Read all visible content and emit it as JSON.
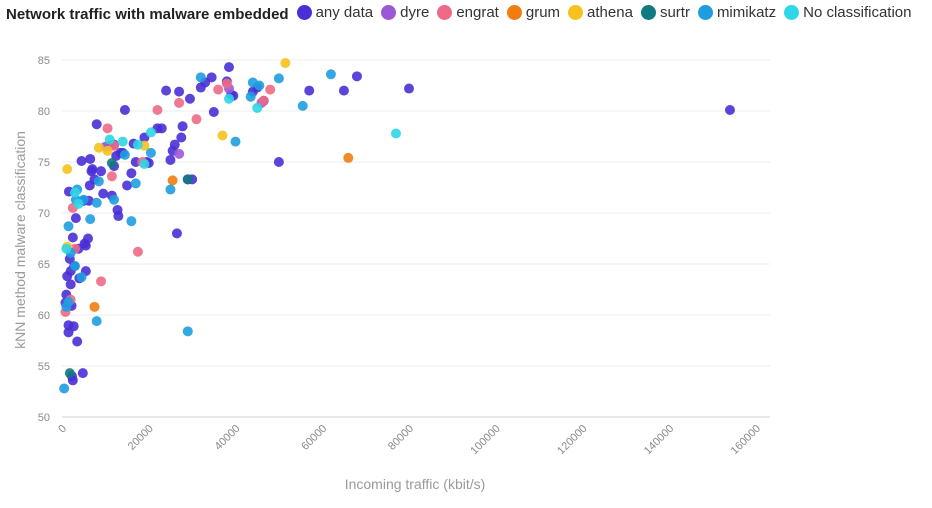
{
  "legend": {
    "title": "Network traffic with malware embedded",
    "items": [
      {
        "label": "any data",
        "color": "#4a2fd6"
      },
      {
        "label": "dyre",
        "color": "#9b59d6"
      },
      {
        "label": "engrat",
        "color": "#ee6a86"
      },
      {
        "label": "grum",
        "color": "#f07d0f"
      },
      {
        "label": "athena",
        "color": "#f7c21d"
      },
      {
        "label": "surtr",
        "color": "#117a80"
      },
      {
        "label": "mimikatz",
        "color": "#1f9de0"
      },
      {
        "label": "No classification",
        "color": "#2fd6e6"
      }
    ]
  },
  "chart_data": {
    "type": "scatter",
    "title": "Network traffic with malware embedded",
    "xlabel": "Incoming traffic (kbit/s)",
    "ylabel": "kNN method malware classification",
    "xlim": [
      0,
      160000
    ],
    "ylim": [
      50,
      85
    ],
    "x_ticks": [
      "0",
      "20000",
      "40000",
      "60000",
      "80000",
      "100000",
      "120000",
      "140000",
      "160000"
    ],
    "y_ticks": [
      "50",
      "55",
      "60",
      "65",
      "70",
      "75",
      "80",
      "85"
    ],
    "grid": "horizontal",
    "legend_position": "top",
    "series": [
      {
        "name": "any data",
        "points": [
          [
            800,
            61.2
          ],
          [
            1000,
            62
          ],
          [
            1200,
            63.8
          ],
          [
            1500,
            58.3
          ],
          [
            1500,
            59
          ],
          [
            1600,
            72.1
          ],
          [
            1800,
            65.5
          ],
          [
            2000,
            64.3
          ],
          [
            2000,
            63
          ],
          [
            2200,
            60.9
          ],
          [
            2300,
            54
          ],
          [
            2500,
            53.6
          ],
          [
            2500,
            67.6
          ],
          [
            2700,
            58.9
          ],
          [
            2800,
            64.8
          ],
          [
            3200,
            69.5
          ],
          [
            3500,
            57.4
          ],
          [
            3800,
            66.5
          ],
          [
            4000,
            63.6
          ],
          [
            4500,
            75.1
          ],
          [
            4800,
            54.3
          ],
          [
            5000,
            71.2
          ],
          [
            5200,
            67
          ],
          [
            5500,
            66.8
          ],
          [
            5500,
            64.3
          ],
          [
            6000,
            67.5
          ],
          [
            6200,
            71.2
          ],
          [
            6400,
            72.7
          ],
          [
            6500,
            75.3
          ],
          [
            6800,
            74.1
          ],
          [
            7000,
            74.3
          ],
          [
            7500,
            73.3
          ],
          [
            8000,
            78.7
          ],
          [
            9000,
            74.1
          ],
          [
            9500,
            71.9
          ],
          [
            11000,
            76.6
          ],
          [
            11500,
            71.7
          ],
          [
            12000,
            74.6
          ],
          [
            12000,
            76.7
          ],
          [
            12500,
            75.6
          ],
          [
            12800,
            70.3
          ],
          [
            13000,
            69.7
          ],
          [
            13500,
            75.9
          ],
          [
            14000,
            75.9
          ],
          [
            14500,
            80.1
          ],
          [
            15000,
            72.7
          ],
          [
            16000,
            73.9
          ],
          [
            16500,
            76.8
          ],
          [
            17000,
            75
          ],
          [
            19000,
            77.4
          ],
          [
            19500,
            75
          ],
          [
            20000,
            74.9
          ],
          [
            22000,
            78.3
          ],
          [
            23000,
            78.3
          ],
          [
            24000,
            82
          ],
          [
            25000,
            75.2
          ],
          [
            25500,
            76.1
          ],
          [
            26000,
            76.7
          ],
          [
            26500,
            68
          ],
          [
            27000,
            81.9
          ],
          [
            27500,
            77.4
          ],
          [
            27800,
            78.5
          ],
          [
            29000,
            73.3
          ],
          [
            29500,
            81.2
          ],
          [
            30000,
            73.3
          ],
          [
            32000,
            82.3
          ],
          [
            33000,
            82.8
          ],
          [
            34500,
            83.3
          ],
          [
            35000,
            79.9
          ],
          [
            38000,
            82.9
          ],
          [
            38500,
            84.3
          ],
          [
            39000,
            81.6
          ],
          [
            39500,
            81.5
          ],
          [
            44000,
            81.9
          ],
          [
            45000,
            82.3
          ],
          [
            46500,
            81
          ],
          [
            50000,
            75
          ],
          [
            57000,
            82
          ],
          [
            65000,
            82
          ],
          [
            68000,
            83.4
          ],
          [
            80000,
            82.2
          ],
          [
            154000,
            80.1
          ]
        ]
      },
      {
        "name": "dyre",
        "points": [
          [
            10000,
            76.5
          ],
          [
            27000,
            75.8
          ],
          [
            38500,
            82.2
          ],
          [
            46000,
            80.8
          ]
        ]
      },
      {
        "name": "engrat",
        "points": [
          [
            800,
            60.3
          ],
          [
            2000,
            61.5
          ],
          [
            2500,
            70.5
          ],
          [
            3000,
            66.5
          ],
          [
            9000,
            63.3
          ],
          [
            10500,
            78.3
          ],
          [
            11500,
            73.6
          ],
          [
            12000,
            76.6
          ],
          [
            17500,
            66.2
          ],
          [
            18500,
            75
          ],
          [
            22000,
            80.1
          ],
          [
            27000,
            80.8
          ],
          [
            31000,
            79.2
          ],
          [
            36000,
            82.1
          ],
          [
            38000,
            82.7
          ],
          [
            46500,
            81
          ],
          [
            48000,
            82.1
          ]
        ]
      },
      {
        "name": "grum",
        "points": [
          [
            7500,
            60.8
          ],
          [
            25500,
            73.2
          ],
          [
            66000,
            75.4
          ]
        ]
      },
      {
        "name": "athena",
        "points": [
          [
            1200,
            74.3
          ],
          [
            1200,
            66.7
          ],
          [
            8500,
            76.4
          ],
          [
            10500,
            76.1
          ],
          [
            19000,
            76.6
          ],
          [
            37000,
            77.6
          ],
          [
            51500,
            84.7
          ]
        ]
      },
      {
        "name": "surtr",
        "points": [
          [
            1800,
            54.3
          ],
          [
            11500,
            74.9
          ],
          [
            29000,
            73.3
          ]
        ]
      },
      {
        "name": "mimikatz",
        "points": [
          [
            500,
            52.8
          ],
          [
            1000,
            60.8
          ],
          [
            1500,
            61.3
          ],
          [
            1500,
            68.7
          ],
          [
            2000,
            66.1
          ],
          [
            3000,
            64.8
          ],
          [
            3200,
            71.3
          ],
          [
            3500,
            72.3
          ],
          [
            4500,
            63.7
          ],
          [
            5000,
            71.3
          ],
          [
            6500,
            69.4
          ],
          [
            8000,
            71
          ],
          [
            8000,
            59.4
          ],
          [
            8500,
            73.1
          ],
          [
            12000,
            71.3
          ],
          [
            14500,
            75.7
          ],
          [
            16000,
            69.2
          ],
          [
            17000,
            72.9
          ],
          [
            20500,
            75.9
          ],
          [
            25000,
            72.3
          ],
          [
            29000,
            58.4
          ],
          [
            32000,
            83.3
          ],
          [
            40000,
            77
          ],
          [
            43500,
            81.4
          ],
          [
            44000,
            82.8
          ],
          [
            45500,
            82.5
          ],
          [
            50000,
            83.2
          ],
          [
            55500,
            80.5
          ],
          [
            62000,
            83.6
          ]
        ]
      },
      {
        "name": "No classification",
        "points": [
          [
            1000,
            66.5
          ],
          [
            3000,
            72
          ],
          [
            3800,
            70.9
          ],
          [
            11000,
            77.2
          ],
          [
            14000,
            77
          ],
          [
            17500,
            76.7
          ],
          [
            19000,
            74.8
          ],
          [
            20500,
            77.9
          ],
          [
            38500,
            81.2
          ],
          [
            45000,
            80.3
          ],
          [
            77000,
            77.8
          ]
        ]
      }
    ]
  }
}
